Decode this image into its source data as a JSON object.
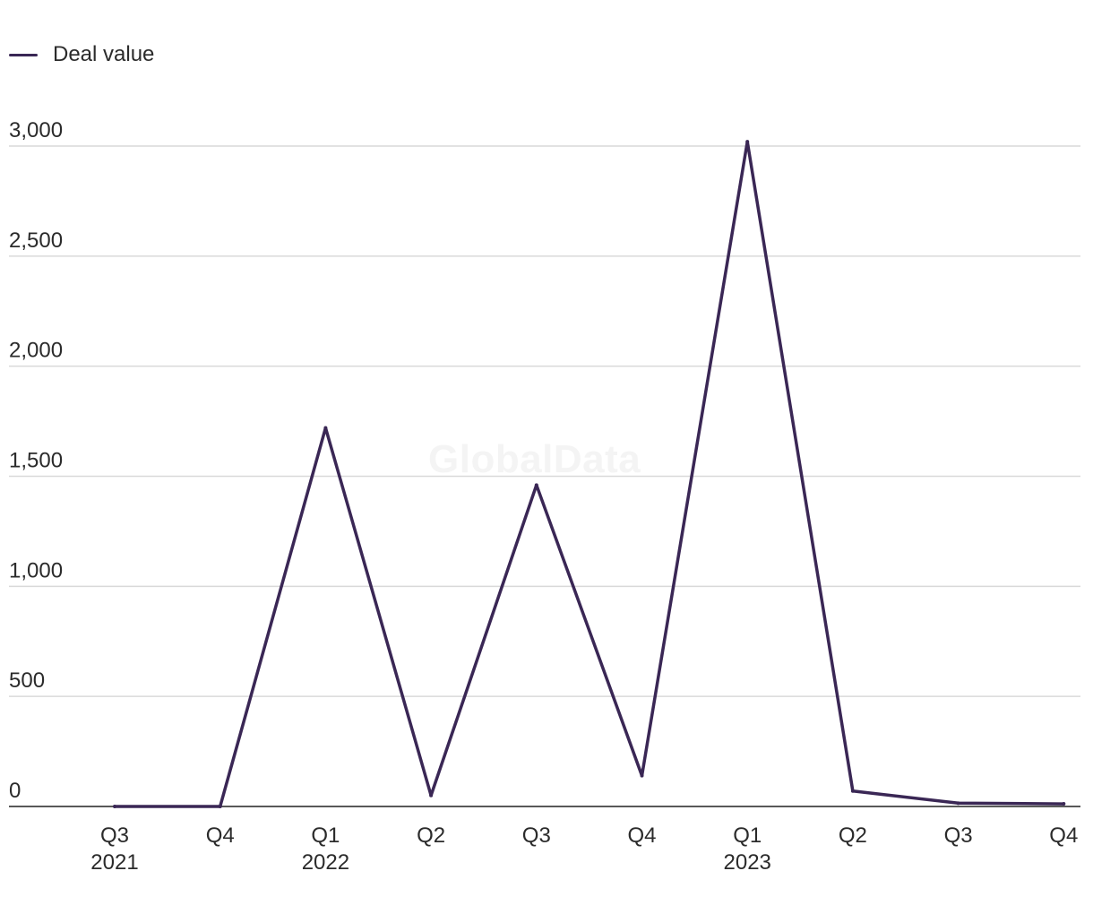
{
  "legend": {
    "label": "Deal value"
  },
  "watermark": "GlobalData",
  "colors": {
    "series": "#3a2755",
    "grid": "#d9d9d9",
    "axis": "#222222"
  },
  "chart_data": {
    "type": "line",
    "categories": [
      "Q3 2021",
      "Q4 2021",
      "Q1 2022",
      "Q2 2022",
      "Q3 2022",
      "Q4 2022",
      "Q1 2023",
      "Q2 2023",
      "Q3 2023",
      "Q4 2023"
    ],
    "x_tick_labels": [
      {
        "quarter": "Q3",
        "year": "2021"
      },
      {
        "quarter": "Q4",
        "year": ""
      },
      {
        "quarter": "Q1",
        "year": "2022"
      },
      {
        "quarter": "Q2",
        "year": ""
      },
      {
        "quarter": "Q3",
        "year": ""
      },
      {
        "quarter": "Q4",
        "year": ""
      },
      {
        "quarter": "Q1",
        "year": "2023"
      },
      {
        "quarter": "Q2",
        "year": ""
      },
      {
        "quarter": "Q3",
        "year": ""
      },
      {
        "quarter": "Q4",
        "year": ""
      }
    ],
    "series": [
      {
        "name": "Deal value",
        "values": [
          0,
          0,
          1720,
          50,
          1460,
          140,
          3020,
          70,
          15,
          12
        ]
      }
    ],
    "y_ticks": [
      {
        "value": 0,
        "label": "0"
      },
      {
        "value": 500,
        "label": "500"
      },
      {
        "value": 1000,
        "label": "1,000"
      },
      {
        "value": 1500,
        "label": "1,500"
      },
      {
        "value": 2000,
        "label": "2,000"
      },
      {
        "value": 2500,
        "label": "2,500"
      },
      {
        "value": 3000,
        "label": "3,000"
      }
    ],
    "ylim": [
      0,
      3000
    ],
    "grid": true,
    "legend_position": "top-left"
  }
}
